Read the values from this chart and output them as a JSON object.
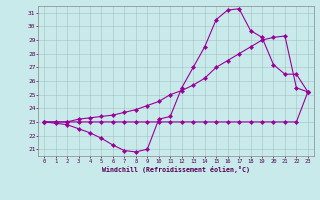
{
  "xlabel": "Windchill (Refroidissement éolien,°C)",
  "background_color": "#c8eaea",
  "line_color": "#990099",
  "grid_color": "#b0c8c8",
  "xlim": [
    -0.5,
    23.5
  ],
  "ylim": [
    20.5,
    31.5
  ],
  "xticks": [
    0,
    1,
    2,
    3,
    4,
    5,
    6,
    7,
    8,
    9,
    10,
    11,
    12,
    13,
    14,
    15,
    16,
    17,
    18,
    19,
    20,
    21,
    22,
    23
  ],
  "yticks": [
    21,
    22,
    23,
    24,
    25,
    26,
    27,
    28,
    29,
    30,
    31
  ],
  "line1_x": [
    0,
    1,
    2,
    3,
    4,
    5,
    6,
    7,
    8,
    9,
    10,
    11,
    12,
    13,
    14,
    15,
    16,
    17,
    18,
    19,
    20,
    21,
    22,
    23
  ],
  "line1_y": [
    23.0,
    23.0,
    23.0,
    23.0,
    23.0,
    23.0,
    23.0,
    23.0,
    23.0,
    23.0,
    23.0,
    23.0,
    23.0,
    23.0,
    23.0,
    23.0,
    23.0,
    23.0,
    23.0,
    23.0,
    23.0,
    23.0,
    23.0,
    25.2
  ],
  "line2_x": [
    0,
    1,
    2,
    3,
    4,
    5,
    6,
    7,
    8,
    9,
    10,
    11,
    12,
    13,
    14,
    15,
    16,
    17,
    18,
    19,
    20,
    21,
    22,
    23
  ],
  "line2_y": [
    23.0,
    23.0,
    23.0,
    23.2,
    23.3,
    23.4,
    23.5,
    23.7,
    23.9,
    24.2,
    24.5,
    25.0,
    25.3,
    25.7,
    26.2,
    27.0,
    27.5,
    28.0,
    28.5,
    29.0,
    29.2,
    29.3,
    25.5,
    25.2
  ],
  "line3_x": [
    0,
    1,
    2,
    3,
    4,
    5,
    6,
    7,
    8,
    9,
    10,
    11,
    12,
    13,
    14,
    15,
    16,
    17,
    18,
    19,
    20,
    21,
    22,
    23
  ],
  "line3_y": [
    23.0,
    22.9,
    22.8,
    22.5,
    22.2,
    21.8,
    21.3,
    20.9,
    20.8,
    21.0,
    23.2,
    23.4,
    25.5,
    27.0,
    28.5,
    30.5,
    31.2,
    31.3,
    29.7,
    29.2,
    27.2,
    26.5,
    26.5,
    25.2
  ]
}
